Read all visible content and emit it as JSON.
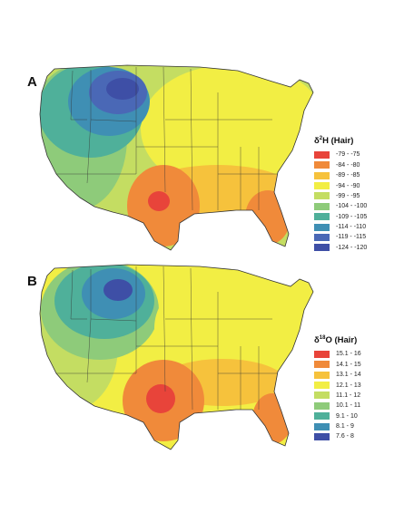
{
  "panels": [
    {
      "letter": "A",
      "legend_title_prefix": "δ",
      "legend_title_sup": "2",
      "legend_title_suffix": "H (Hair)",
      "legend": [
        {
          "label": "-79 - -75",
          "color": "#e8443a"
        },
        {
          "label": "-84 - -80",
          "color": "#f08a3a"
        },
        {
          "label": "-89 - -85",
          "color": "#f6c23c"
        },
        {
          "label": "-94 - -90",
          "color": "#f2ee44"
        },
        {
          "label": "-99 - -95",
          "color": "#c4dd62"
        },
        {
          "label": "-104 - -100",
          "color": "#8ecb7a"
        },
        {
          "label": "-109 - -105",
          "color": "#4fb09a"
        },
        {
          "label": "-114 - -110",
          "color": "#3f8fb4"
        },
        {
          "label": "-119 - -115",
          "color": "#4a68b6"
        },
        {
          "label": "-124 - -120",
          "color": "#3e4fa6"
        }
      ]
    },
    {
      "letter": "B",
      "legend_title_prefix": "δ",
      "legend_title_sup": "18",
      "legend_title_suffix": "O (Hair)",
      "legend": [
        {
          "label": "15.1 - 16",
          "color": "#e8443a"
        },
        {
          "label": "14.1 - 15",
          "color": "#f08a3a"
        },
        {
          "label": "13.1 - 14",
          "color": "#f6c23c"
        },
        {
          "label": "12.1 - 13",
          "color": "#f2ee44"
        },
        {
          "label": "11.1 - 12",
          "color": "#c4dd62"
        },
        {
          "label": "10.1 - 11",
          "color": "#8ecb7a"
        },
        {
          "label": "9.1 - 10",
          "color": "#4fb09a"
        },
        {
          "label": "8.1 - 9",
          "color": "#3f8fb4"
        },
        {
          "label": "7.6 - 8",
          "color": "#3e4fa6"
        }
      ]
    }
  ]
}
